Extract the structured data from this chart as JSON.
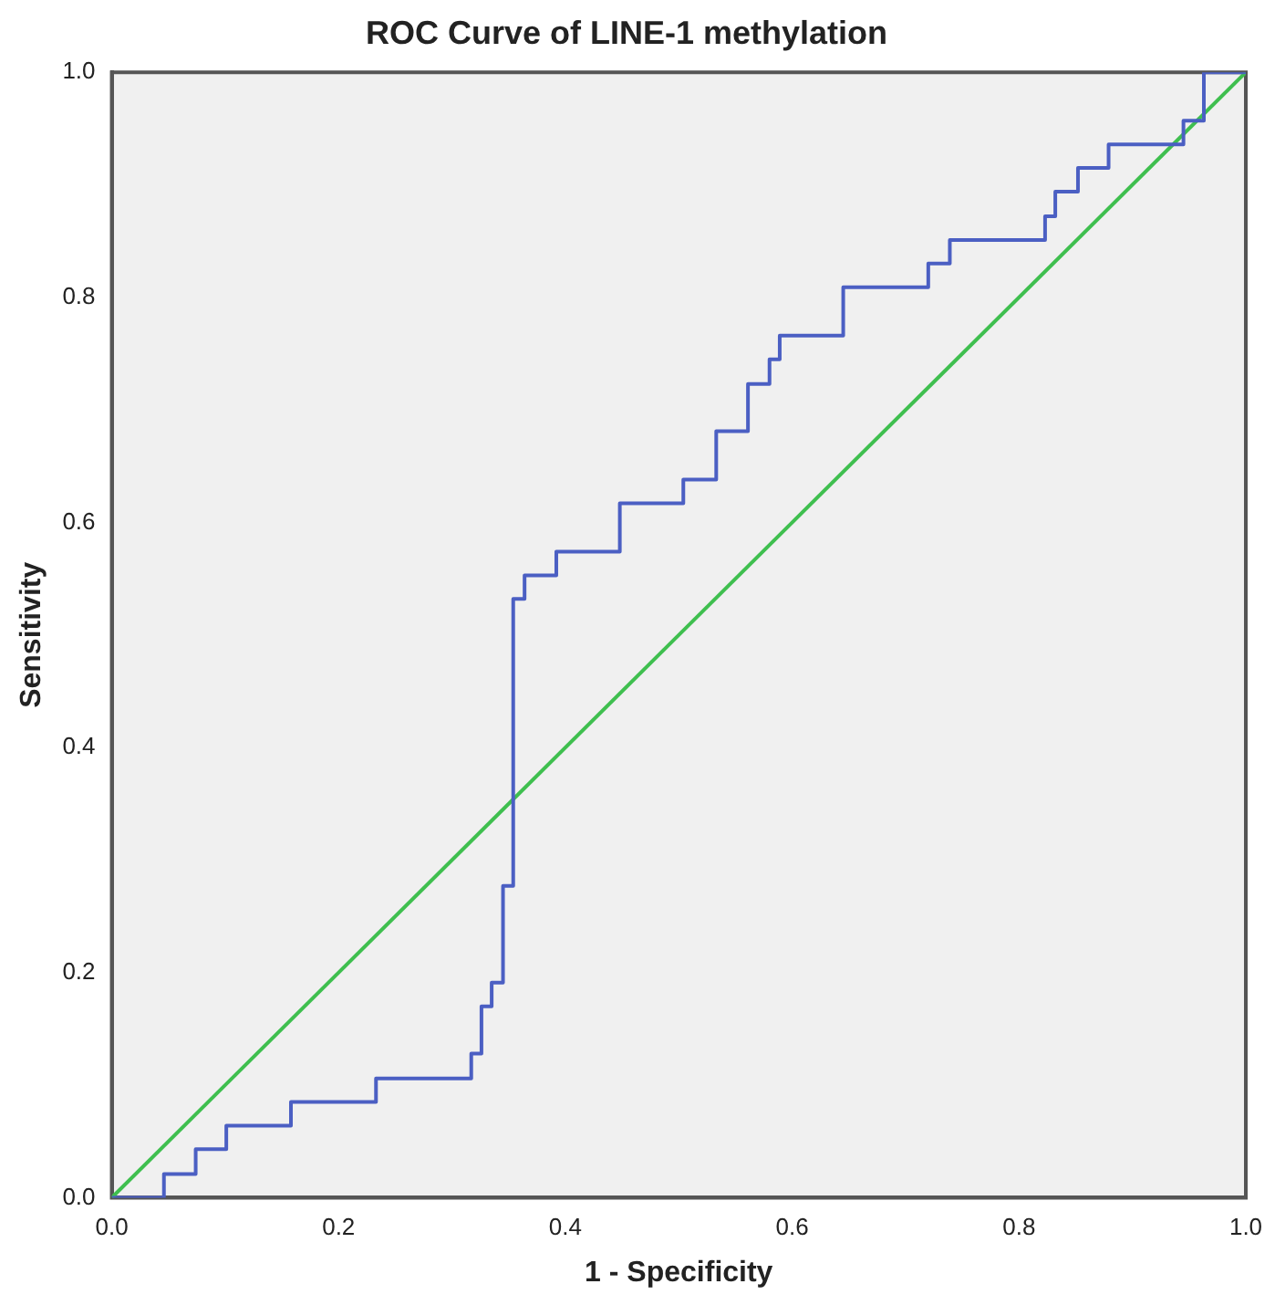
{
  "chart_data": {
    "type": "step",
    "title": "ROC Curve of LINE-1 methylation",
    "xlabel": "1 - Specificity",
    "ylabel": "Sensitivity",
    "xlim": [
      0,
      1
    ],
    "ylim": [
      0,
      1
    ],
    "xticks": [
      {
        "value": 0,
        "label": "0.0"
      },
      {
        "value": 0.2,
        "label": "0.2"
      },
      {
        "value": 0.4,
        "label": "0.4"
      },
      {
        "value": 0.6,
        "label": "0.6"
      },
      {
        "value": 0.8,
        "label": "0.8"
      },
      {
        "value": 1,
        "label": "1.0"
      }
    ],
    "yticks": [
      {
        "value": 0,
        "label": "0.0"
      },
      {
        "value": 0.2,
        "label": "0.2"
      },
      {
        "value": 0.4,
        "label": "0.4"
      },
      {
        "value": 0.6,
        "label": "0.6"
      },
      {
        "value": 0.8,
        "label": "0.8"
      },
      {
        "value": 1,
        "label": "1.0"
      }
    ],
    "grid": false,
    "legend": false,
    "marker": "none",
    "line_style": "solid",
    "series": [
      {
        "color": "#4b5fc3",
        "x": [
          0,
          0.046,
          0.074,
          0.101,
          0.158,
          0.233,
          0.317,
          0.326,
          0.335,
          0.345,
          0.354,
          0.364,
          0.392,
          0.448,
          0.504,
          0.533,
          0.561,
          0.58,
          0.589,
          0.645,
          0.72,
          0.739,
          0.823,
          0.832,
          0.852,
          0.879,
          0.945,
          0.963,
          1
        ],
        "values": [
          0,
          0.021,
          0.043,
          0.064,
          0.085,
          0.106,
          0.128,
          0.17,
          0.191,
          0.277,
          0.532,
          0.553,
          0.574,
          0.617,
          0.638,
          0.681,
          0.723,
          0.745,
          0.766,
          0.809,
          0.83,
          0.851,
          0.872,
          0.894,
          0.915,
          0.936,
          0.957,
          1,
          1
        ]
      },
      {
        "type": "line",
        "color": "#3fbf4f",
        "x": [
          0,
          1
        ],
        "values": [
          0,
          1
        ]
      }
    ]
  }
}
